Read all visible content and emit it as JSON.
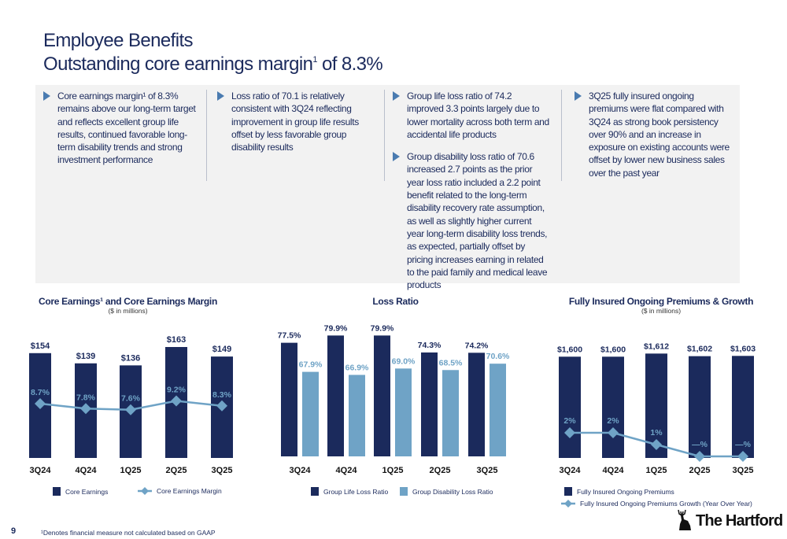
{
  "header": {
    "title": "Employee Benefits",
    "subtitle_pre": "Outstanding core earnings margin",
    "subtitle_sup": "1",
    "subtitle_post": " of 8.3%"
  },
  "bullets": [
    [
      "Core earnings margin¹ of 8.3% remains above our long-term target and reflects excellent group life results, continued favorable long-term disability trends and strong investment performance"
    ],
    [
      "Loss ratio of 70.1 is relatively consistent with 3Q24 reflecting improvement in group life results offset by less favorable group disability results"
    ],
    [
      "Group life loss ratio of 74.2 improved 3.3 points largely due to lower mortality across both term and accidental life products",
      "Group disability loss ratio of 70.6 increased 2.7 points as the prior year loss ratio included a 2.2 point benefit related to the long-term disability recovery rate assumption, as well as slightly higher current year long-term disability loss trends, as expected, partially offset by pricing increases earning in related to the paid family and medical leave products"
    ],
    [
      "3Q25 fully insured ongoing premiums were flat compared with 3Q24 as strong book persistency over 90% and an increase in exposure on existing accounts were offset by lower new business sales over the past year"
    ]
  ],
  "colors": {
    "navy": "#1b2a5c",
    "light_blue": "#6fa3c6",
    "accent": "#4a7bb0",
    "panel": "#f2f2f2"
  },
  "chart_data": [
    {
      "type": "bar",
      "title": "Core Earnings¹ and Core Earnings Margin",
      "subtitle": "($ in millions)",
      "categories": [
        "3Q24",
        "4Q24",
        "1Q25",
        "2Q25",
        "3Q25"
      ],
      "series": [
        {
          "name": "Core Earnings",
          "kind": "bar",
          "values": [
            154,
            139,
            136,
            163,
            149
          ],
          "labels": [
            "$154",
            "$139",
            "$136",
            "$163",
            "$149"
          ],
          "color": "#1b2a5c"
        },
        {
          "name": "Core Earnings Margin",
          "kind": "line",
          "values": [
            8.7,
            7.8,
            7.6,
            9.2,
            8.3
          ],
          "labels": [
            "8.7%",
            "7.8%",
            "7.6%",
            "9.2%",
            "8.3%"
          ],
          "color": "#6fa3c6"
        }
      ],
      "legend": "bottom"
    },
    {
      "type": "bar",
      "title": "Loss Ratio",
      "categories": [
        "3Q24",
        "4Q24",
        "1Q25",
        "2Q25",
        "3Q25"
      ],
      "series": [
        {
          "name": "Group Life Loss Ratio",
          "values": [
            77.5,
            79.9,
            79.9,
            74.3,
            74.2
          ],
          "labels": [
            "77.5%",
            "79.9%",
            "79.9%",
            "74.3%",
            "74.2%"
          ],
          "color": "#1b2a5c"
        },
        {
          "name": "Group Disability Loss Ratio",
          "values": [
            67.9,
            66.9,
            69.0,
            68.5,
            70.6
          ],
          "labels": [
            "67.9%",
            "66.9%",
            "69.0%",
            "68.5%",
            "70.6%"
          ],
          "color": "#6fa3c6"
        }
      ],
      "ylim": [
        40,
        82
      ],
      "legend": "bottom"
    },
    {
      "type": "bar",
      "title": "Fully Insured Ongoing Premiums & Growth",
      "subtitle": "($ in millions)",
      "categories": [
        "3Q24",
        "4Q24",
        "1Q25",
        "2Q25",
        "3Q25"
      ],
      "series": [
        {
          "name": "Fully Insured Ongoing Premiums",
          "kind": "bar",
          "values": [
            1600,
            1600,
            1612,
            1602,
            1603
          ],
          "labels": [
            "$1,600",
            "$1,600",
            "$1,612",
            "$1,602",
            "$1,603"
          ],
          "color": "#1b2a5c"
        },
        {
          "name": "Fully Insured Ongoing Premiums Growth (Year Over Year)",
          "kind": "line",
          "values": [
            2,
            2,
            1,
            0,
            0
          ],
          "labels": [
            "2%",
            "2%",
            "1%",
            "—%",
            "—%"
          ],
          "color": "#6fa3c6"
        }
      ],
      "legend": "bottom"
    }
  ],
  "footer": {
    "page_number": "9",
    "footnote": "¹Denotes financial measure not calculated based on GAAP",
    "logo": "The Hartford"
  }
}
